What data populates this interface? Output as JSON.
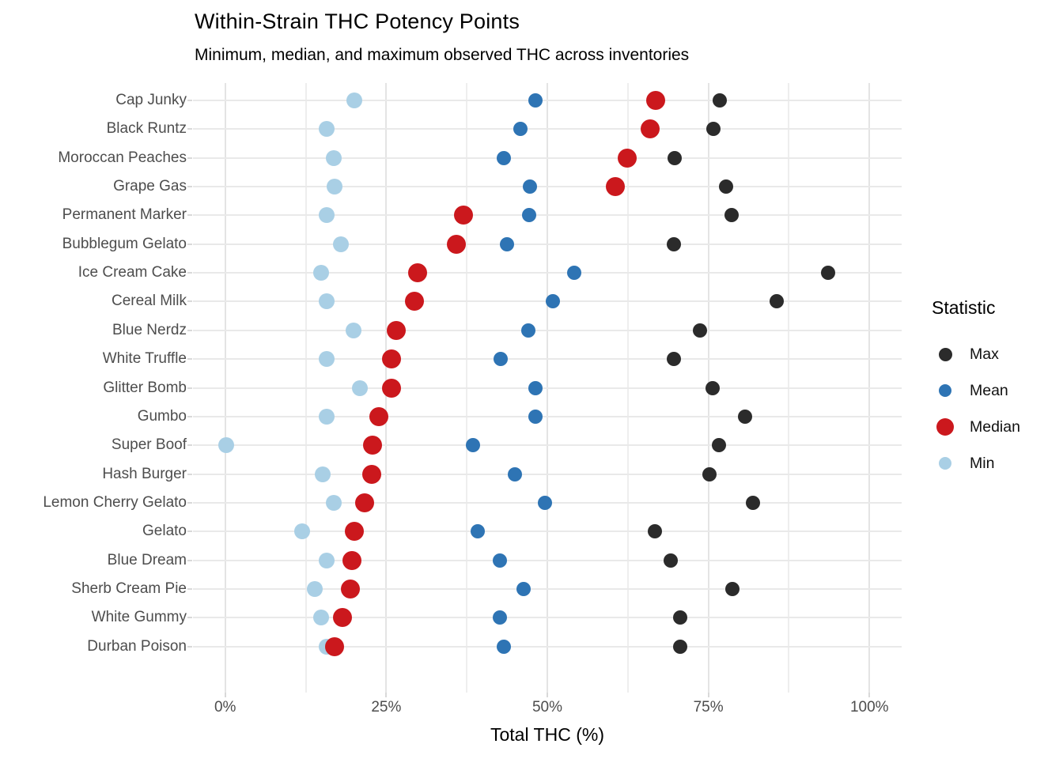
{
  "title": "Within-Strain THC Potency Points",
  "subtitle": "Minimum, median, and maximum observed THC across inventories",
  "xlabel": "Total THC (%)",
  "legend": {
    "title": "Statistic",
    "position": "right",
    "entries": [
      {
        "label": "Max",
        "key": "max",
        "color": "#2b2b2b",
        "key_size": 17
      },
      {
        "label": "Mean",
        "key": "mean",
        "color": "#2e74b4",
        "key_size": 16
      },
      {
        "label": "Median",
        "key": "median",
        "color": "#cb181d",
        "key_size": 22
      },
      {
        "label": "Min",
        "key": "min",
        "color": "#a9cfe5",
        "key_size": 16
      }
    ]
  },
  "chart_data": {
    "type": "scatter",
    "subtype": "horizontal-dot-plot",
    "title": "Within-Strain THC Potency Points",
    "subtitle": "Minimum, median, and maximum observed THC across inventories",
    "xlabel": "Total THC (%)",
    "ylabel": "",
    "grid": true,
    "legend_position": "right",
    "xlim": [
      -5,
      105
    ],
    "x_ticks": [
      0,
      25,
      50,
      75,
      100
    ],
    "x_tick_labels": [
      "0%",
      "25%",
      "50%",
      "75%",
      "100%"
    ],
    "x_minor_ticks": [
      12.5,
      37.5,
      62.5,
      87.5
    ],
    "statistics": {
      "min": {
        "color": "#a9cfe5",
        "size": 20
      },
      "mean": {
        "color": "#2e74b4",
        "size": 18
      },
      "max": {
        "color": "#2b2b2b",
        "size": 18
      },
      "median": {
        "color": "#cb181d",
        "size": 24
      }
    },
    "draw_order": [
      "min",
      "mean",
      "max",
      "median"
    ],
    "strains": [
      {
        "strain": "Cap Junky",
        "min": 20.0,
        "mean": 48.2,
        "median": 66.8,
        "max": 76.8
      },
      {
        "strain": "Black Runtz",
        "min": 15.8,
        "mean": 45.8,
        "median": 66.0,
        "max": 75.8
      },
      {
        "strain": "Moroccan Peaches",
        "min": 16.9,
        "mean": 43.3,
        "median": 62.4,
        "max": 69.8
      },
      {
        "strain": "Grape Gas",
        "min": 17.0,
        "mean": 47.3,
        "median": 60.6,
        "max": 77.7
      },
      {
        "strain": "Permanent Marker",
        "min": 15.8,
        "mean": 47.2,
        "median": 37.0,
        "max": 78.6
      },
      {
        "strain": "Bubblegum Gelato",
        "min": 17.9,
        "mean": 43.7,
        "median": 35.9,
        "max": 69.7
      },
      {
        "strain": "Ice Cream Cake",
        "min": 14.9,
        "mean": 54.2,
        "median": 29.9,
        "max": 93.6
      },
      {
        "strain": "Cereal Milk",
        "min": 15.8,
        "mean": 50.9,
        "median": 29.4,
        "max": 85.6
      },
      {
        "strain": "Blue Nerdz",
        "min": 19.9,
        "mean": 47.0,
        "median": 26.5,
        "max": 73.7
      },
      {
        "strain": "White Truffle",
        "min": 15.8,
        "mean": 42.8,
        "median": 25.8,
        "max": 69.7
      },
      {
        "strain": "Glitter Bomb",
        "min": 20.9,
        "mean": 48.1,
        "median": 25.8,
        "max": 75.7
      },
      {
        "strain": "Gumbo",
        "min": 15.8,
        "mean": 48.1,
        "median": 23.9,
        "max": 80.7
      },
      {
        "strain": "Super Boof",
        "min": 0.2,
        "mean": 38.5,
        "median": 22.9,
        "max": 76.6
      },
      {
        "strain": "Hash Burger",
        "min": 15.1,
        "mean": 45.0,
        "median": 22.7,
        "max": 75.2
      },
      {
        "strain": "Lemon Cherry Gelato",
        "min": 16.9,
        "mean": 49.6,
        "median": 21.7,
        "max": 81.9
      },
      {
        "strain": "Gelato",
        "min": 12.0,
        "mean": 39.2,
        "median": 20.0,
        "max": 66.7
      },
      {
        "strain": "Blue Dream",
        "min": 15.8,
        "mean": 42.6,
        "median": 19.7,
        "max": 69.2
      },
      {
        "strain": "Sherb Cream Pie",
        "min": 13.9,
        "mean": 46.3,
        "median": 19.4,
        "max": 78.7
      },
      {
        "strain": "White Gummy",
        "min": 14.9,
        "mean": 42.6,
        "median": 18.2,
        "max": 70.6
      },
      {
        "strain": "Durban Poison",
        "min": 15.8,
        "mean": 43.3,
        "median": 17.0,
        "max": 70.6
      }
    ]
  }
}
